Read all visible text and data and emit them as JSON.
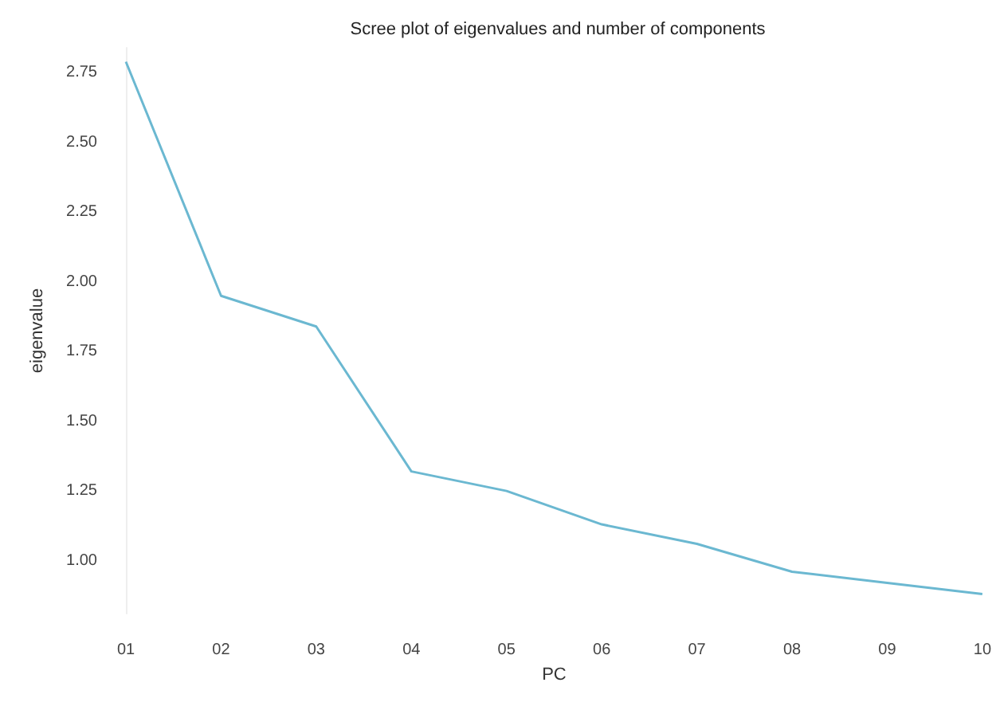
{
  "chart_data": {
    "type": "line",
    "title": "Scree plot of eigenvalues and number of components",
    "xlabel": "PC",
    "ylabel": "eigenvalue",
    "categories": [
      "01",
      "02",
      "03",
      "04",
      "05",
      "06",
      "07",
      "08",
      "09",
      "10"
    ],
    "series": [
      {
        "color": "#6bb8d1",
        "values": [
          2.79,
          1.95,
          1.84,
          1.32,
          1.25,
          1.13,
          1.06,
          0.96,
          0.92,
          0.88
        ]
      }
    ],
    "ylim": [
      0.81,
      2.84
    ],
    "yticks": [
      {
        "value": 1,
        "label": "1.00"
      },
      {
        "value": 1.25,
        "label": "1.25"
      },
      {
        "value": 1.5,
        "label": "1.50"
      },
      {
        "value": 1.75,
        "label": "1.75"
      },
      {
        "value": 2,
        "label": "2.00"
      },
      {
        "value": 2.25,
        "label": "2.25"
      },
      {
        "value": 2.5,
        "label": "2.50"
      },
      {
        "value": 2.75,
        "label": "2.75"
      }
    ],
    "grid": false,
    "marker": "none",
    "line_style": "solid"
  }
}
